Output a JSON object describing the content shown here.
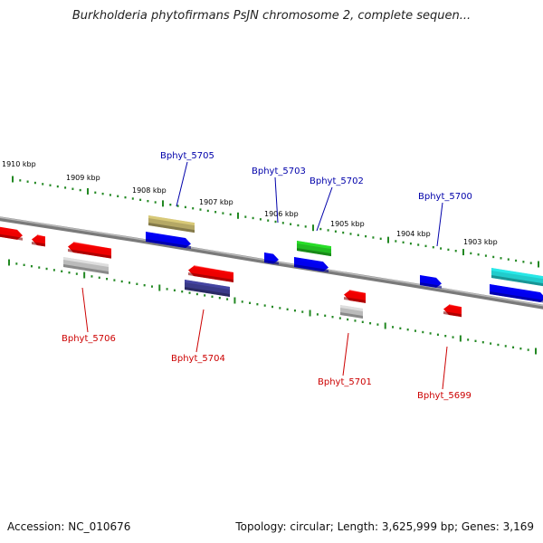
{
  "title": "Burkholderia phytofirmans PsJN chromosome 2, complete sequen...",
  "footer": {
    "accession": "Accession: NC_010676",
    "summary": "Topology: circular; Length: 3,625,999 bp; Genes: 3,169"
  },
  "scale": {
    "ticks": [
      {
        "label": "1910 kbp",
        "kbp": 1910
      },
      {
        "label": "1909 kbp",
        "kbp": 1909
      },
      {
        "label": "1908 kbp",
        "kbp": 1908
      },
      {
        "label": "1907 kbp",
        "kbp": 1907
      },
      {
        "label": "1906 kbp",
        "kbp": 1906
      },
      {
        "label": "1905 kbp",
        "kbp": 1905
      },
      {
        "label": "1904 kbp",
        "kbp": 1904
      },
      {
        "label": "1903 kbp",
        "kbp": 1903
      }
    ]
  },
  "genes": {
    "labeled_plus": [
      {
        "name": "Bphyt_5705",
        "color": "#0000aa"
      },
      {
        "name": "Bphyt_5703",
        "color": "#0000aa"
      },
      {
        "name": "Bphyt_5702",
        "color": "#0000aa"
      },
      {
        "name": "Bphyt_5700",
        "color": "#0000aa"
      }
    ],
    "labeled_minus": [
      {
        "name": "Bphyt_5706",
        "color": "#cc0000"
      },
      {
        "name": "Bphyt_5704",
        "color": "#cc0000"
      },
      {
        "name": "Bphyt_5701",
        "color": "#cc0000"
      },
      {
        "name": "Bphyt_5699",
        "color": "#cc0000"
      }
    ]
  },
  "colors": {
    "forward_gene": "#0000ee",
    "reverse_gene": "#ee0000",
    "pseudo_gene": "#bbbbbb",
    "rna_gene": "#22bb22",
    "tick": "#228822",
    "backbone": "#888888"
  }
}
